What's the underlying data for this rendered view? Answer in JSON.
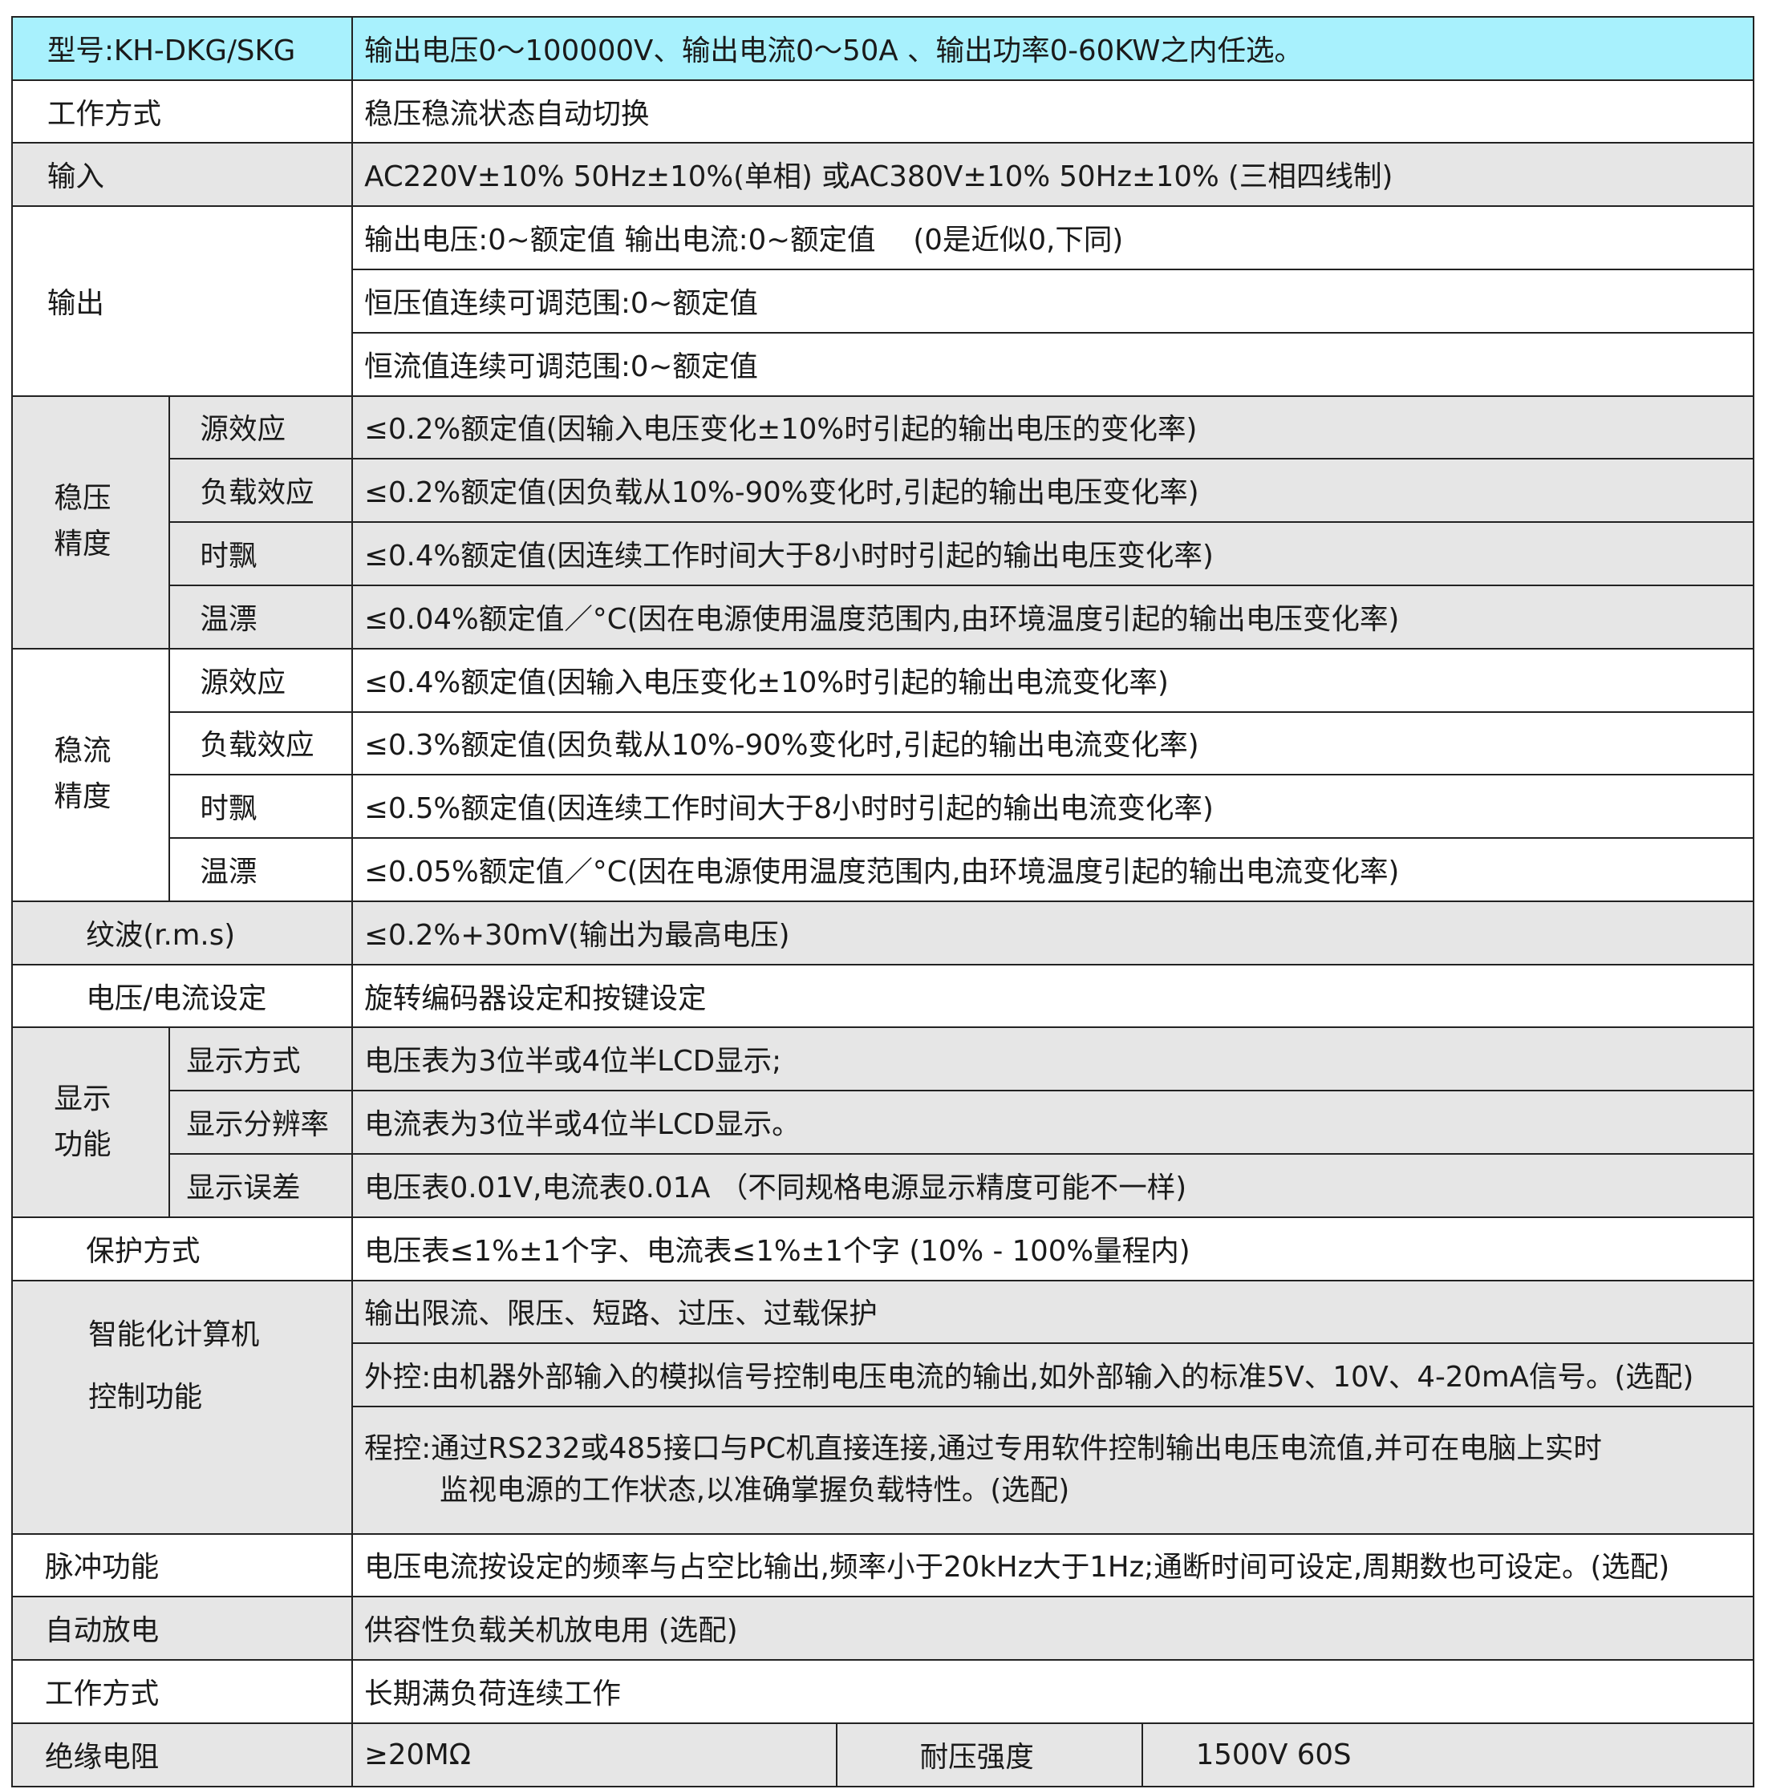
{
  "header": {
    "label": "型号:KH-DKG/SKG",
    "value": "输出电压0～100000V、输出电流0～50A 、输出功率0-60KW之内任选。"
  },
  "rows": {
    "work_mode": {
      "label": "工作方式",
      "value": "稳压稳流状态自动切换"
    },
    "input": {
      "label": "输入",
      "value": "AC220V±10% 50Hz±10%(单相) 或AC380V±10% 50Hz±10% (三相四线制)"
    },
    "output": {
      "label": "输出",
      "values": [
        "输出电压:0~额定值 输出电流:0~额定值　 (0是近似0,下同)",
        "恒压值连续可调范围:0~额定值",
        "恒流值连续可调范围:0~额定值"
      ]
    },
    "voltage_precision": {
      "label_line1": "稳压",
      "label_line2": "精度",
      "items": [
        {
          "label": "源效应",
          "value": "≤0.2%额定值(因输入电压变化±10%时引起的输出电压的变化率)"
        },
        {
          "label": "负载效应",
          "value": "≤0.2%额定值(因负载从10%-90%变化时,引起的输出电压变化率)"
        },
        {
          "label": "时飘",
          "value": "≤0.4%额定值(因连续工作时间大于8小时时引起的输出电压变化率)"
        },
        {
          "label": "温漂",
          "value": "≤0.04%额定值／°C(因在电源使用温度范围内,由环境温度引起的输出电压变化率)"
        }
      ]
    },
    "current_precision": {
      "label_line1": "稳流",
      "label_line2": "精度",
      "items": [
        {
          "label": "源效应",
          "value": "≤0.4%额定值(因输入电压变化±10%时引起的输出电流变化率)"
        },
        {
          "label": "负载效应",
          "value": "≤0.3%额定值(因负载从10%-90%变化时,引起的输出电流变化率)"
        },
        {
          "label": "时飘",
          "value": "≤0.5%额定值(因连续工作时间大于8小时时引起的输出电流变化率)"
        },
        {
          "label": "温漂",
          "value": "≤0.05%额定值／°C(因在电源使用温度范围内,由环境温度引起的输出电流变化率)"
        }
      ]
    },
    "ripple": {
      "label": "纹波(r.m.s)",
      "value": "≤0.2%+30mV(输出为最高电压)"
    },
    "setting": {
      "label": "电压/电流设定",
      "value": "旋转编码器设定和按键设定"
    },
    "display": {
      "label_line1": "显示",
      "label_line2": "功能",
      "items": [
        {
          "label": "显示方式",
          "value": "电压表为3位半或4位半LCD显示;"
        },
        {
          "label": "显示分辨率",
          "value": "电流表为3位半或4位半LCD显示。"
        },
        {
          "label": "显示误差",
          "value": "电压表0.01V,电流表0.01A （不同规格电源显示精度可能不一样)"
        }
      ]
    },
    "protection": {
      "label": "保护方式",
      "value": "电压表≤1%±1个字、电流表≤1%±1个字 (10% - 100%量程内)"
    },
    "smart": {
      "label_line1": "智能化计算机",
      "label_line2": "控制功能",
      "values": [
        "输出限流、限压、短路、过压、过载保护",
        "外控:由机器外部输入的模拟信号控制电压电流的输出,如外部输入的标准5V、10V、4-20mA信号。(选配)",
        "程控:通过RS232或485接口与PC机直接连接,通过专用软件控制输出电压电流值,并可在电脑上实时"
      ],
      "continuation": "监视电源的工作状态,以准确掌握负载特性。(选配)"
    },
    "pulse": {
      "label": "脉冲功能",
      "value": "电压电流按设定的频率与占空比输出,频率小于20kHz大于1Hz;通断时间可设定,周期数也可设定。(选配)"
    },
    "discharge": {
      "label": "自动放电",
      "value": "供容性负载关机放电用 (选配)"
    },
    "work_mode2": {
      "label": "工作方式",
      "value": "长期满负荷连续工作"
    },
    "insulation": {
      "label": "绝缘电阻",
      "value": "≥20MΩ",
      "label2": "耐压强度",
      "value2": "1500V 60S"
    }
  },
  "colors": {
    "header_bg": "#a8f1fd",
    "gray_bg": "#e6e6e6",
    "border": "#222222"
  }
}
